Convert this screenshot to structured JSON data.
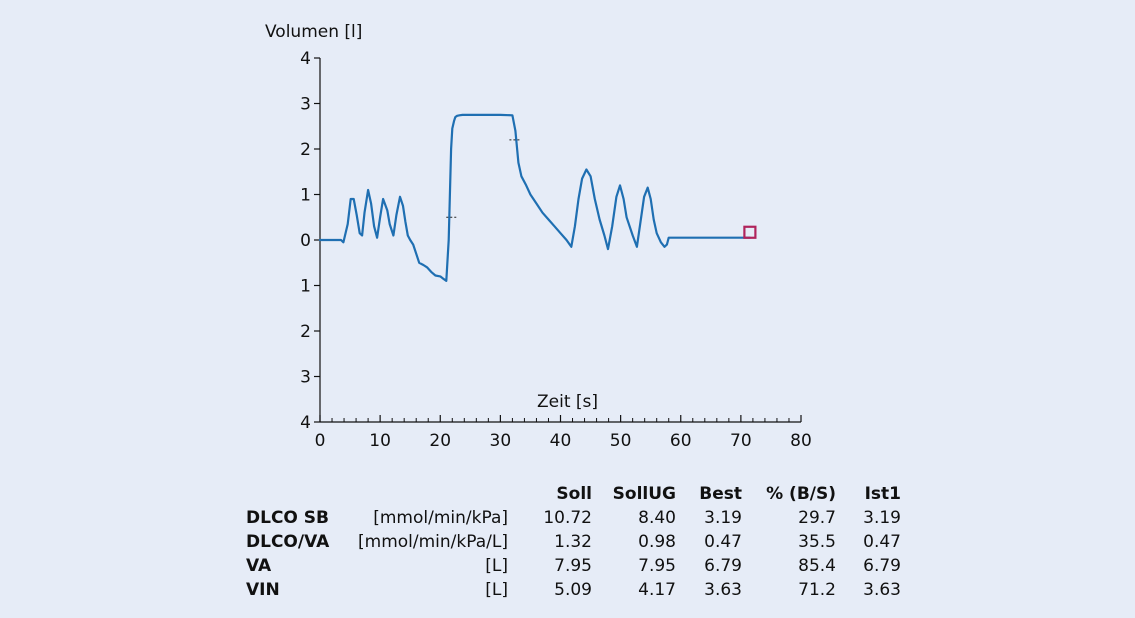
{
  "chart_data": {
    "type": "line",
    "title": "",
    "xlabel": "Zeit [s]",
    "ylabel": "Volumen [l]",
    "xlim": [
      0,
      80
    ],
    "ylim": [
      -4,
      4
    ],
    "x_ticks": [
      0,
      10,
      20,
      30,
      40,
      50,
      60,
      70,
      80
    ],
    "x_tick_labels": [
      "0",
      "10",
      "20",
      "30",
      "40",
      "50",
      "60",
      "70",
      "80"
    ],
    "y_ticks": [
      4,
      3,
      2,
      1,
      0,
      -1,
      -2,
      -3,
      -4
    ],
    "y_tick_labels": [
      "4",
      "3",
      "2",
      "1",
      "0",
      "1",
      "2",
      "3",
      "4"
    ],
    "grid": false,
    "line_color": "#1f6fb2",
    "marker_color": "#b0245c",
    "series": [
      {
        "x": [
          0,
          3.5,
          3.9,
          4.6,
          5.1,
          5.6,
          6.1,
          6.6,
          7.0,
          7.4,
          8.0,
          8.5,
          9.0,
          9.5,
          10.0,
          10.5,
          11.2,
          11.6,
          12.2,
          12.7,
          13.3,
          13.8,
          14.2,
          14.6,
          15.0,
          15.5,
          16.0,
          16.5,
          17.2,
          17.8,
          18.5,
          19.2,
          20.0,
          20.5,
          21.0,
          21.4,
          21.6,
          21.8,
          22.0,
          22.3,
          22.5,
          22.8,
          23.2,
          23.7,
          24.5,
          26.0,
          28.0,
          30.0,
          32.0,
          32.5,
          33.0,
          33.5,
          34.3,
          35.0,
          36.0,
          37.0,
          38.0,
          39.0,
          40.0,
          41.0,
          41.8,
          42.4,
          43.0,
          43.6,
          44.3,
          45.0,
          45.7,
          46.5,
          47.3,
          47.9,
          48.6,
          49.3,
          49.9,
          50.5,
          51.0,
          52.0,
          52.7,
          53.3,
          53.9,
          54.5,
          55.0,
          55.5,
          56.0,
          56.7,
          57.3,
          57.7,
          58.0,
          58.3,
          59.0,
          65.0,
          71.5
        ],
        "y": [
          0,
          0,
          -0.05,
          0.35,
          0.9,
          0.9,
          0.55,
          0.15,
          0.1,
          0.6,
          1.1,
          0.8,
          0.3,
          0.05,
          0.5,
          0.9,
          0.65,
          0.35,
          0.1,
          0.55,
          0.95,
          0.75,
          0.4,
          0.1,
          0.0,
          -0.1,
          -0.3,
          -0.5,
          -0.55,
          -0.6,
          -0.7,
          -0.78,
          -0.8,
          -0.85,
          -0.9,
          0.0,
          1.0,
          2.0,
          2.45,
          2.62,
          2.7,
          2.73,
          2.74,
          2.75,
          2.75,
          2.75,
          2.75,
          2.75,
          2.74,
          2.4,
          1.7,
          1.4,
          1.2,
          1.0,
          0.8,
          0.6,
          0.45,
          0.3,
          0.15,
          0.0,
          -0.15,
          0.3,
          0.9,
          1.35,
          1.55,
          1.4,
          0.9,
          0.45,
          0.1,
          -0.2,
          0.3,
          0.95,
          1.2,
          0.9,
          0.5,
          0.1,
          -0.15,
          0.4,
          0.95,
          1.15,
          0.9,
          0.45,
          0.15,
          -0.05,
          -0.15,
          -0.1,
          0.05,
          0.05,
          0.05,
          0.05,
          0.05
        ]
      }
    ],
    "reference_marks": [
      {
        "x": 22,
        "y": 0.5
      },
      {
        "x": 32.5,
        "y": 2.2
      }
    ],
    "end_marker": {
      "x": 71.5,
      "y": 0.17
    }
  },
  "table": {
    "headers": [
      "Soll",
      "SollUG",
      "Best",
      "% (B/S)",
      "Ist1"
    ],
    "rows": [
      {
        "name": "DLCO SB",
        "unit": "[mmol/min/kPa]",
        "values": [
          "10.72",
          "8.40",
          "3.19",
          "29.7",
          "3.19"
        ]
      },
      {
        "name": "DLCO/VA",
        "unit": "[mmol/min/kPa/L]",
        "values": [
          "1.32",
          "0.98",
          "0.47",
          "35.5",
          "0.47"
        ]
      },
      {
        "name": "VA",
        "unit": "[L]",
        "values": [
          "7.95",
          "7.95",
          "6.79",
          "85.4",
          "6.79"
        ]
      },
      {
        "name": "VIN",
        "unit": "[L]",
        "values": [
          "5.09",
          "4.17",
          "3.63",
          "71.2",
          "3.63"
        ]
      }
    ]
  }
}
